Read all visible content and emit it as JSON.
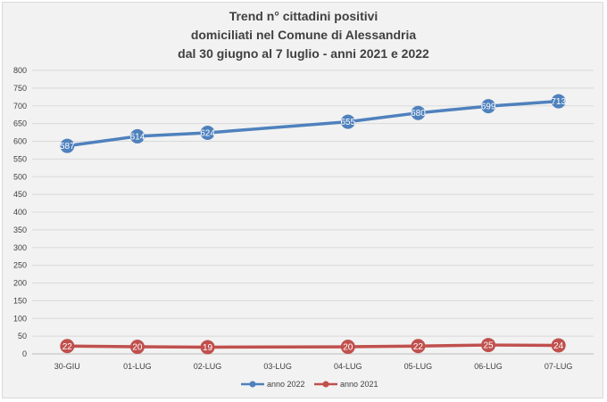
{
  "chart_data": {
    "type": "line",
    "title_lines": [
      "Trend n° cittadini positivi",
      "domiciliati nel Comune di Alessandria",
      "dal 30 giugno al 7 luglio - anni 2021 e 2022"
    ],
    "categories": [
      "30-GIU",
      "01-LUG",
      "02-LUG",
      "03-LUG",
      "04-LUG",
      "05-LUG",
      "06-LUG",
      "07-LUG"
    ],
    "ylim": [
      0,
      800
    ],
    "ystep": 50,
    "grid": true,
    "legend_position": "bottom",
    "series": [
      {
        "name": "anno 2022",
        "color": "#4f81bd",
        "values": [
          587,
          614,
          624,
          null,
          655,
          680,
          699,
          713
        ],
        "labels": [
          "587",
          "614",
          "624",
          "",
          "655",
          "680",
          "699",
          "713"
        ]
      },
      {
        "name": "anno 2021",
        "color": "#c0504d",
        "values": [
          22,
          20,
          19,
          null,
          20,
          22,
          25,
          24
        ],
        "labels": [
          "22",
          "20",
          "19",
          "",
          "20",
          "22",
          "25",
          "24"
        ]
      }
    ]
  }
}
